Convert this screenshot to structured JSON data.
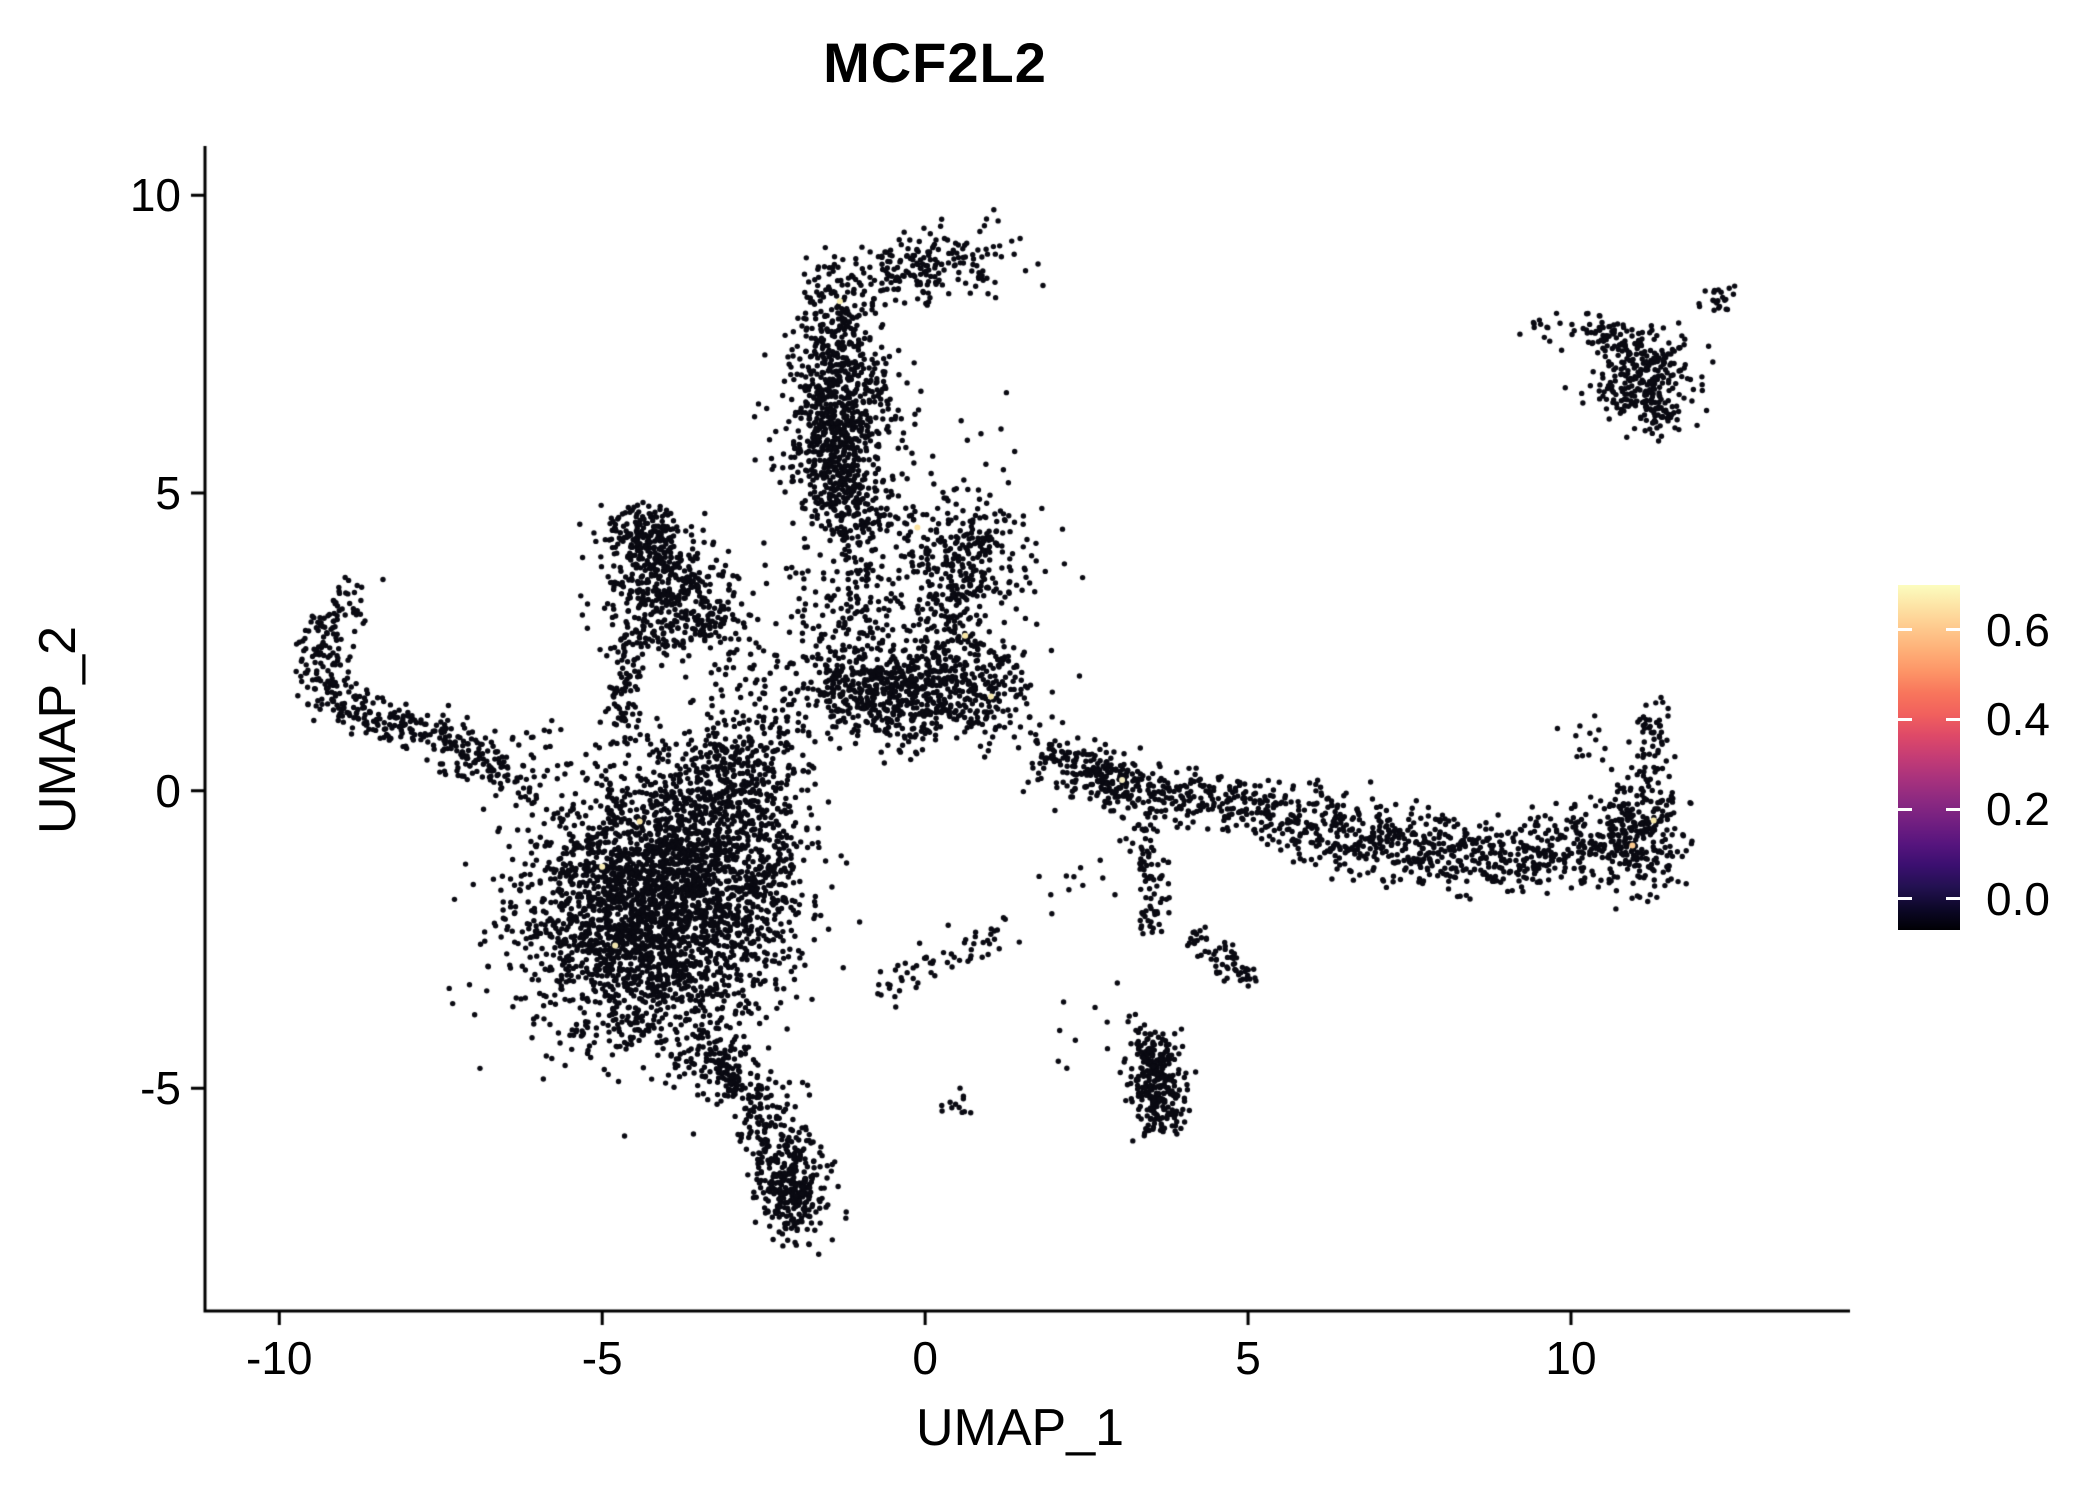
{
  "title": "MCF2L2",
  "axes": {
    "xlabel": "UMAP_1",
    "ylabel": "UMAP_2",
    "x_tick_labels": [
      "-10",
      "-5",
      "0",
      "5",
      "10"
    ],
    "x_tick_values": [
      -10,
      -5,
      0,
      5,
      10
    ],
    "y_tick_labels": [
      "10",
      "5",
      "0",
      "-5"
    ],
    "y_tick_values": [
      10,
      5,
      0,
      -5
    ],
    "x_domain": [
      -11.15,
      14.32
    ],
    "y_domain": [
      -8.74,
      10.76
    ]
  },
  "colorbar": {
    "tick_labels": [
      "0.6",
      "0.4",
      "0.2",
      "0.0"
    ],
    "tick_values": [
      0.6,
      0.4,
      0.2,
      0.0
    ],
    "gradient_bottom_to_top": [
      "#000004",
      "#0d0829",
      "#231151",
      "#3b0f70",
      "#57157e",
      "#721f81",
      "#8c2981",
      "#a8327d",
      "#c43c75",
      "#de4968",
      "#f1605d",
      "#f8765c",
      "#fd9567",
      "#feb078",
      "#fec98d",
      "#fde3a5",
      "#fcfdbf"
    ]
  },
  "style": {
    "point_color": "#0a0a12",
    "background": "#ffffff",
    "axis_color": "#000000"
  },
  "chart_data": {
    "type": "scatter",
    "title": "MCF2L2",
    "xlabel": "UMAP_1",
    "ylabel": "UMAP_2",
    "xlim": [
      -11.15,
      14.32
    ],
    "ylim": [
      -8.74,
      10.76
    ],
    "color_scale": "magma",
    "color_range": [
      0.0,
      0.7
    ],
    "legend_position": "right",
    "representation": "cluster_summary",
    "clusters": [
      {
        "kind": "gauss",
        "n": 130,
        "cx": 0.35,
        "cy": 8.9,
        "sx": 0.5,
        "sy": 0.28
      },
      {
        "kind": "gauss",
        "n": 60,
        "cx": -0.4,
        "cy": 8.55,
        "sx": 0.35,
        "sy": 0.25
      },
      {
        "kind": "path",
        "n": 650,
        "jitter": 0.3,
        "pts": [
          [
            -1.25,
            8.6
          ],
          [
            -1.45,
            7.6
          ],
          [
            -1.3,
            6.7
          ],
          [
            -1.5,
            5.9
          ],
          [
            -1.2,
            5.0
          ],
          [
            -0.95,
            4.3
          ]
        ]
      },
      {
        "kind": "gauss",
        "n": 330,
        "cx": -1.35,
        "cy": 5.9,
        "sx": 0.42,
        "sy": 0.85
      },
      {
        "kind": "gauss",
        "n": 60,
        "cx": -0.7,
        "cy": 6.6,
        "sx": 0.3,
        "sy": 0.6
      },
      {
        "kind": "gauss",
        "n": 14,
        "cx": 0.7,
        "cy": 5.7,
        "sx": 0.45,
        "sy": 0.6
      },
      {
        "kind": "gauss",
        "n": 270,
        "cx": 0.6,
        "cy": 4.0,
        "sx": 0.55,
        "sy": 0.5
      },
      {
        "kind": "path",
        "n": 130,
        "jitter": 0.28,
        "pts": [
          [
            0.55,
            3.4
          ],
          [
            0.3,
            2.6
          ],
          [
            0.15,
            2.1
          ]
        ]
      },
      {
        "kind": "gauss",
        "n": 700,
        "cx": -0.3,
        "cy": 1.6,
        "sx": 0.85,
        "sy": 0.42
      },
      {
        "kind": "gauss",
        "n": 80,
        "cx": 1.0,
        "cy": 2.0,
        "sx": 0.32,
        "sy": 0.4
      },
      {
        "kind": "gauss",
        "n": 190,
        "cx": -1.15,
        "cy": 3.1,
        "sx": 0.5,
        "sy": 0.75
      },
      {
        "kind": "gauss",
        "n": 150,
        "cx": -4.3,
        "cy": 4.3,
        "sx": 0.38,
        "sy": 0.26
      },
      {
        "kind": "path",
        "n": 220,
        "jitter": 0.3,
        "pts": [
          [
            -4.45,
            4.3
          ],
          [
            -3.9,
            3.4
          ],
          [
            -3.25,
            2.6
          ]
        ]
      },
      {
        "kind": "gauss",
        "n": 260,
        "cx": -4.05,
        "cy": 3.2,
        "sx": 0.55,
        "sy": 0.55
      },
      {
        "kind": "path",
        "n": 90,
        "jitter": 0.15,
        "pts": [
          [
            -4.55,
            2.6
          ],
          [
            -4.65,
            1.8
          ],
          [
            -4.72,
            1.05
          ]
        ]
      },
      {
        "kind": "path",
        "n": 430,
        "jitter": 0.2,
        "pts": [
          [
            -8.85,
            3.3
          ],
          [
            -9.3,
            2.7
          ],
          [
            -9.45,
            2.0
          ],
          [
            -9.0,
            1.5
          ],
          [
            -8.3,
            1.15
          ],
          [
            -7.5,
            0.85
          ],
          [
            -6.8,
            0.5
          ],
          [
            -6.2,
            0.1
          ]
        ]
      },
      {
        "kind": "gauss",
        "n": 25,
        "cx": -6.1,
        "cy": 0.65,
        "sx": 0.8,
        "sy": 0.3
      },
      {
        "kind": "gauss",
        "n": 2300,
        "cx": -4.35,
        "cy": -2.15,
        "sx": 0.95,
        "sy": 1.1
      },
      {
        "kind": "gauss",
        "n": 600,
        "cx": -3.6,
        "cy": -1.0,
        "sx": 0.8,
        "sy": 0.8
      },
      {
        "kind": "gauss",
        "n": 330,
        "cx": -2.85,
        "cy": 0.3,
        "sx": 0.55,
        "sy": 0.65
      },
      {
        "kind": "gauss",
        "n": 220,
        "cx": -2.55,
        "cy": -1.6,
        "sx": 0.42,
        "sy": 0.9
      },
      {
        "kind": "path",
        "n": 420,
        "jitter": 0.28,
        "pts": [
          [
            -3.5,
            -4.3
          ],
          [
            -2.9,
            -4.9
          ],
          [
            -2.45,
            -5.5
          ],
          [
            -2.15,
            -6.3
          ],
          [
            -1.95,
            -7.2
          ]
        ]
      },
      {
        "kind": "gauss",
        "n": 140,
        "cx": -2.05,
        "cy": -6.8,
        "sx": 0.3,
        "sy": 0.45
      },
      {
        "kind": "path",
        "n": 60,
        "jitter": 0.18,
        "pts": [
          [
            -0.7,
            -3.3
          ],
          [
            -0.1,
            -3.0
          ],
          [
            0.55,
            -2.65
          ],
          [
            1.25,
            -2.45
          ]
        ]
      },
      {
        "kind": "gauss",
        "n": 12,
        "cx": 0.5,
        "cy": -5.25,
        "sx": 0.16,
        "sy": 0.12
      },
      {
        "kind": "gauss",
        "n": 15,
        "cx": 2.4,
        "cy": -1.2,
        "sx": 0.45,
        "sy": 0.5
      },
      {
        "kind": "path",
        "n": 380,
        "jitter": 0.22,
        "pts": [
          [
            1.7,
            0.65
          ],
          [
            2.4,
            0.35
          ],
          [
            3.1,
            0.1
          ],
          [
            3.9,
            -0.1
          ],
          [
            4.8,
            -0.2
          ],
          [
            5.6,
            -0.45
          ]
        ]
      },
      {
        "kind": "gauss",
        "n": 90,
        "cx": 2.85,
        "cy": 0.2,
        "sx": 0.3,
        "sy": 0.28
      },
      {
        "kind": "path",
        "n": 750,
        "jitter": 0.33,
        "pts": [
          [
            5.6,
            -0.45
          ],
          [
            6.6,
            -0.7
          ],
          [
            7.6,
            -1.0
          ],
          [
            8.6,
            -1.15
          ],
          [
            9.6,
            -1.05
          ],
          [
            10.5,
            -0.85
          ],
          [
            11.3,
            -0.6
          ]
        ]
      },
      {
        "kind": "gauss",
        "n": 190,
        "cx": 11.1,
        "cy": -0.75,
        "sx": 0.35,
        "sy": 0.55
      },
      {
        "kind": "path",
        "n": 55,
        "jitter": 0.14,
        "pts": [
          [
            11.15,
            0.2
          ],
          [
            11.25,
            0.9
          ],
          [
            11.3,
            1.5
          ]
        ]
      },
      {
        "kind": "gauss",
        "n": 12,
        "cx": 10.2,
        "cy": 0.9,
        "sx": 0.3,
        "sy": 0.25
      },
      {
        "kind": "path",
        "n": 85,
        "jitter": 0.13,
        "pts": [
          [
            3.35,
            -0.5
          ],
          [
            3.5,
            -1.2
          ],
          [
            3.6,
            -1.9
          ],
          [
            3.5,
            -2.3
          ]
        ]
      },
      {
        "kind": "path",
        "n": 65,
        "jitter": 0.15,
        "pts": [
          [
            4.1,
            -2.4
          ],
          [
            4.6,
            -2.8
          ],
          [
            5.0,
            -3.2
          ]
        ]
      },
      {
        "kind": "path",
        "n": 230,
        "jitter": 0.2,
        "pts": [
          [
            3.45,
            -4.2
          ],
          [
            3.6,
            -4.9
          ],
          [
            3.65,
            -5.6
          ]
        ]
      },
      {
        "kind": "gauss",
        "n": 70,
        "cx": 3.6,
        "cy": -5.0,
        "sx": 0.2,
        "sy": 0.4
      },
      {
        "kind": "gauss",
        "n": 10,
        "cx": 2.4,
        "cy": -3.9,
        "sx": 0.5,
        "sy": 0.3
      },
      {
        "kind": "gauss",
        "n": 50,
        "cx": -2.5,
        "cy": 2.6,
        "sx": 0.7,
        "sy": 0.55
      },
      {
        "kind": "gauss",
        "n": 230,
        "cx": 11.15,
        "cy": 6.95,
        "sx": 0.45,
        "sy": 0.38
      },
      {
        "kind": "path",
        "n": 80,
        "jitter": 0.18,
        "pts": [
          [
            10.15,
            7.8
          ],
          [
            10.7,
            7.6
          ],
          [
            11.25,
            7.3
          ]
        ]
      },
      {
        "kind": "gauss",
        "n": 22,
        "cx": 12.3,
        "cy": 8.25,
        "sx": 0.2,
        "sy": 0.13
      },
      {
        "kind": "gauss",
        "n": 14,
        "cx": 9.65,
        "cy": 7.8,
        "sx": 0.22,
        "sy": 0.1
      },
      {
        "kind": "path",
        "n": 45,
        "jitter": 0.13,
        "pts": [
          [
            11.25,
            6.65
          ],
          [
            11.4,
            6.1
          ]
        ]
      }
    ],
    "highlight_points": [
      {
        "x": -1.32,
        "y": 8.22,
        "color": "#f6edb0"
      },
      {
        "x": -0.12,
        "y": 4.42,
        "color": "#fbe3a0"
      },
      {
        "x": 0.62,
        "y": 2.6,
        "color": "#f9e7a6"
      },
      {
        "x": 1.02,
        "y": 1.58,
        "color": "#f3e6ad"
      },
      {
        "x": -5.0,
        "y": -1.28,
        "color": "#f8edb5"
      },
      {
        "x": -4.42,
        "y": -0.52,
        "color": "#f5e3a2"
      },
      {
        "x": -4.8,
        "y": -2.6,
        "color": "#efe3ae"
      },
      {
        "x": 11.28,
        "y": -0.5,
        "color": "#f7e9a9"
      },
      {
        "x": 10.95,
        "y": -0.92,
        "color": "#fbc98e"
      },
      {
        "x": 3.05,
        "y": 0.18,
        "color": "#f3ebc0"
      }
    ]
  }
}
